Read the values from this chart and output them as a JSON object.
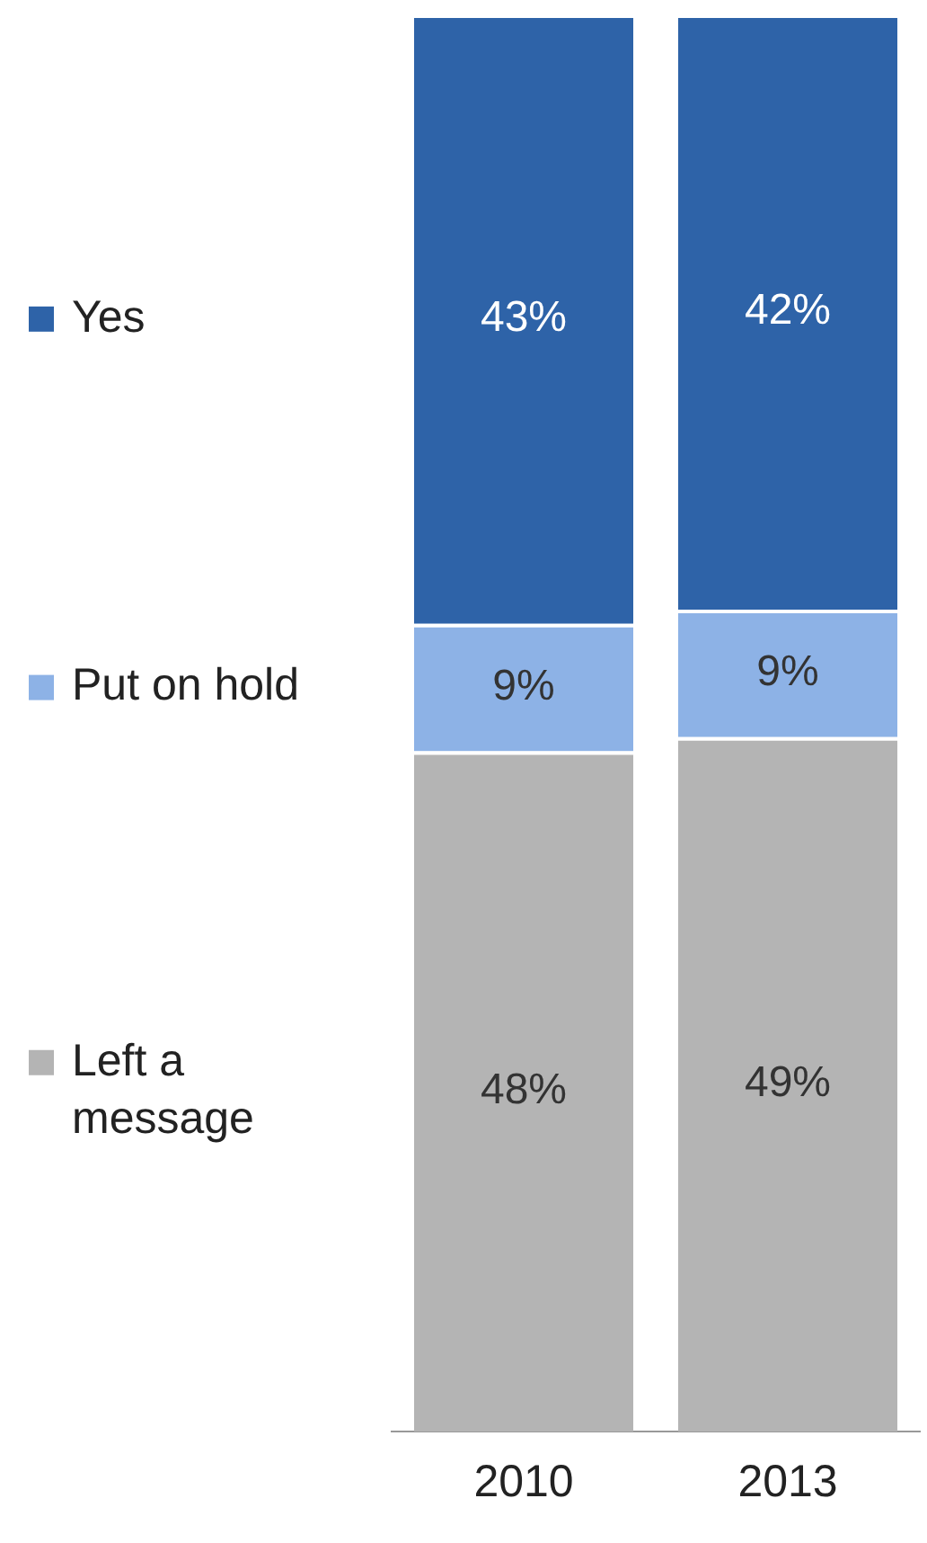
{
  "chart_data": {
    "type": "bar",
    "stacked": true,
    "legend": "left",
    "categories": [
      "2010",
      "2013"
    ],
    "series": [
      {
        "name": "Left a message",
        "color": "#b4b4b4",
        "values": [
          48,
          49
        ],
        "value_labels": [
          "48%",
          "49%"
        ]
      },
      {
        "name": "Put on hold",
        "color": "#8db2e6",
        "values": [
          9,
          9
        ],
        "value_labels": [
          "9%",
          "9%"
        ]
      },
      {
        "name": "Yes",
        "color": "#2e63a8",
        "values": [
          43,
          42
        ],
        "value_labels": [
          "43%",
          "42%"
        ]
      }
    ]
  }
}
